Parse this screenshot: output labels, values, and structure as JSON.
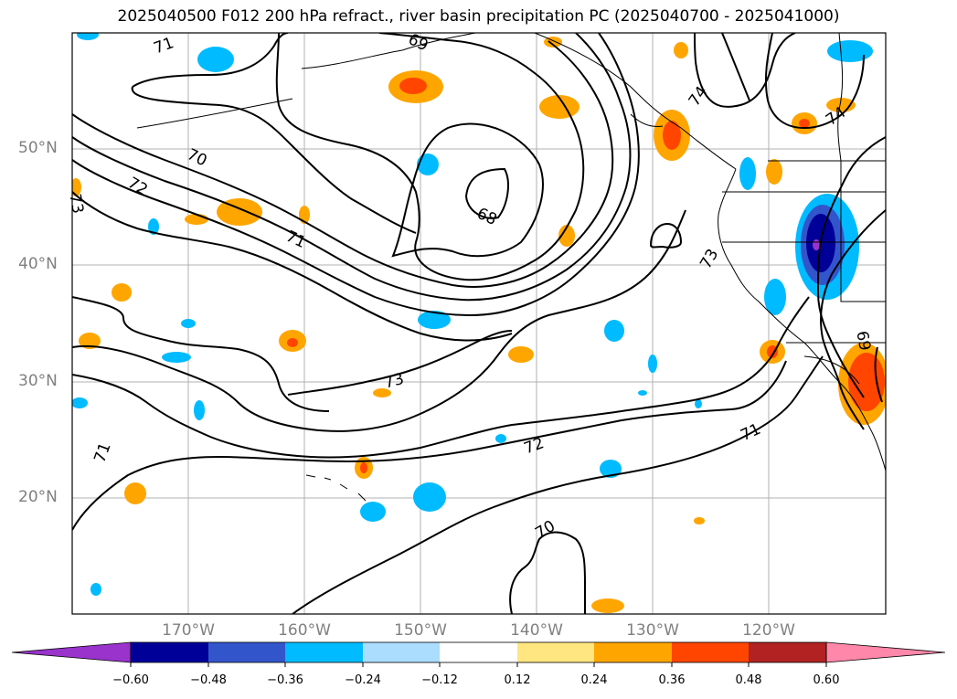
{
  "title": "2025040500 F012 200 hPa refract., river basin precipitation PC (2025040700 - 2025041000)",
  "map": {
    "lat_labels": [
      "50°N",
      "40°N",
      "30°N",
      "20°N"
    ],
    "lon_labels": [
      "170°W",
      "160°W",
      "150°W",
      "140°W",
      "130°W",
      "120°W"
    ],
    "contour_labels": [
      "68",
      "69",
      "69",
      "70",
      "70",
      "71",
      "71",
      "71",
      "71",
      "72",
      "72",
      "73",
      "73",
      "73",
      "74",
      "74"
    ]
  },
  "colorbar": {
    "colors": [
      "#9933cc",
      "#000099",
      "#3355cc",
      "#00bbff",
      "#aaddff",
      "#ffffff",
      "#ffe680",
      "#ffa500",
      "#ff4500",
      "#b22222",
      "#ff88aa"
    ],
    "ticks": [
      "−0.60",
      "−0.48",
      "−0.36",
      "−0.24",
      "−0.12",
      "0.12",
      "0.24",
      "0.36",
      "0.48",
      "0.60"
    ]
  }
}
